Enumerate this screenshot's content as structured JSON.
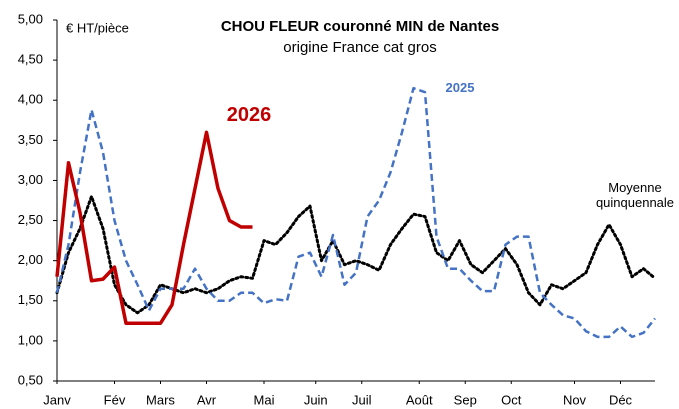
{
  "chart_data": {
    "type": "line",
    "title": "CHOU FLEUR couronné MIN de Nantes",
    "subtitle": "origine France cat gros",
    "y_label": "€ HT/pièce",
    "x": [
      1,
      2,
      3,
      4,
      5,
      6,
      7,
      8,
      9,
      10,
      11,
      12,
      13,
      14,
      15,
      16,
      17,
      18,
      19,
      20,
      21,
      22,
      23,
      24,
      25,
      26,
      27,
      28,
      29,
      30,
      31,
      32,
      33,
      34,
      35,
      36,
      37,
      38,
      39,
      40,
      41,
      42,
      43,
      44,
      45,
      46,
      47,
      48,
      49,
      50,
      51,
      52,
      53
    ],
    "xlim": [
      1,
      53
    ],
    "xticks": [
      {
        "value": 1,
        "label": "Janv"
      },
      {
        "value": 6,
        "label": "Fév"
      },
      {
        "value": 10,
        "label": "Mars"
      },
      {
        "value": 14,
        "label": "Avr"
      },
      {
        "value": 19,
        "label": "Mai"
      },
      {
        "value": 23.5,
        "label": "Juin"
      },
      {
        "value": 27.5,
        "label": "Juil"
      },
      {
        "value": 32.5,
        "label": "Août"
      },
      {
        "value": 36.5,
        "label": "Sep"
      },
      {
        "value": 40.5,
        "label": "Oct"
      },
      {
        "value": 46,
        "label": "Nov"
      },
      {
        "value": 50,
        "label": "Déc"
      }
    ],
    "ylim": [
      0.5,
      5
    ],
    "yticks": [
      {
        "value": 0.5,
        "label": "0,50"
      },
      {
        "value": 1,
        "label": "1,00"
      },
      {
        "value": 1.5,
        "label": "1,50"
      },
      {
        "value": 2,
        "label": "2,00"
      },
      {
        "value": 2.5,
        "label": "2,50"
      },
      {
        "value": 3,
        "label": "3,00"
      },
      {
        "value": 3.5,
        "label": "3,50"
      },
      {
        "value": 4,
        "label": "4,00"
      },
      {
        "value": 4.5,
        "label": "4,50"
      },
      {
        "value": 5,
        "label": "5,00"
      }
    ],
    "grid": false,
    "series": [
      {
        "name": "Moyenne quinquennale",
        "color": "#000000",
        "style": "dotted",
        "values": [
          1.6,
          2.1,
          2.4,
          2.8,
          2.4,
          1.7,
          1.45,
          1.35,
          1.45,
          1.7,
          1.65,
          1.6,
          1.65,
          1.6,
          1.65,
          1.75,
          1.8,
          1.78,
          2.25,
          2.2,
          2.35,
          2.55,
          2.68,
          2.0,
          2.25,
          1.95,
          2.0,
          1.95,
          1.88,
          2.2,
          2.4,
          2.58,
          2.55,
          2.1,
          2.0,
          2.25,
          1.95,
          1.85,
          2.0,
          2.15,
          1.95,
          1.6,
          1.45,
          1.7,
          1.65,
          1.75,
          1.85,
          2.2,
          2.45,
          2.2,
          1.8,
          1.9,
          1.78
        ]
      },
      {
        "name": "2025",
        "color": "#4472c4",
        "style": "dashed",
        "values": [
          1.6,
          2.2,
          3.1,
          3.88,
          3.35,
          2.5,
          2.0,
          1.7,
          1.38,
          1.65,
          1.65,
          1.65,
          1.9,
          1.65,
          1.5,
          1.5,
          1.6,
          1.6,
          1.47,
          1.52,
          1.5,
          2.05,
          2.1,
          1.8,
          2.32,
          1.7,
          1.85,
          2.55,
          2.75,
          3.1,
          3.6,
          4.15,
          4.1,
          2.3,
          1.9,
          1.9,
          1.75,
          1.62,
          1.62,
          2.2,
          2.3,
          2.3,
          1.6,
          1.45,
          1.32,
          1.28,
          1.12,
          1.05,
          1.05,
          1.18,
          1.05,
          1.1,
          1.28
        ]
      },
      {
        "name": "2026",
        "color": "#c00000",
        "style": "solid",
        "values": [
          1.8,
          3.22,
          2.6,
          1.75,
          1.77,
          1.92,
          1.22,
          1.22,
          1.22,
          1.22,
          1.45,
          2.2,
          2.9,
          3.6,
          2.9,
          2.5,
          2.42,
          2.42,
          null,
          null,
          null,
          null,
          null,
          null,
          null,
          null,
          null,
          null,
          null,
          null,
          null,
          null,
          null,
          null,
          null,
          null,
          null,
          null,
          null,
          null,
          null,
          null,
          null,
          null,
          null,
          null,
          null,
          null,
          null,
          null,
          null,
          null,
          null
        ]
      }
    ]
  }
}
